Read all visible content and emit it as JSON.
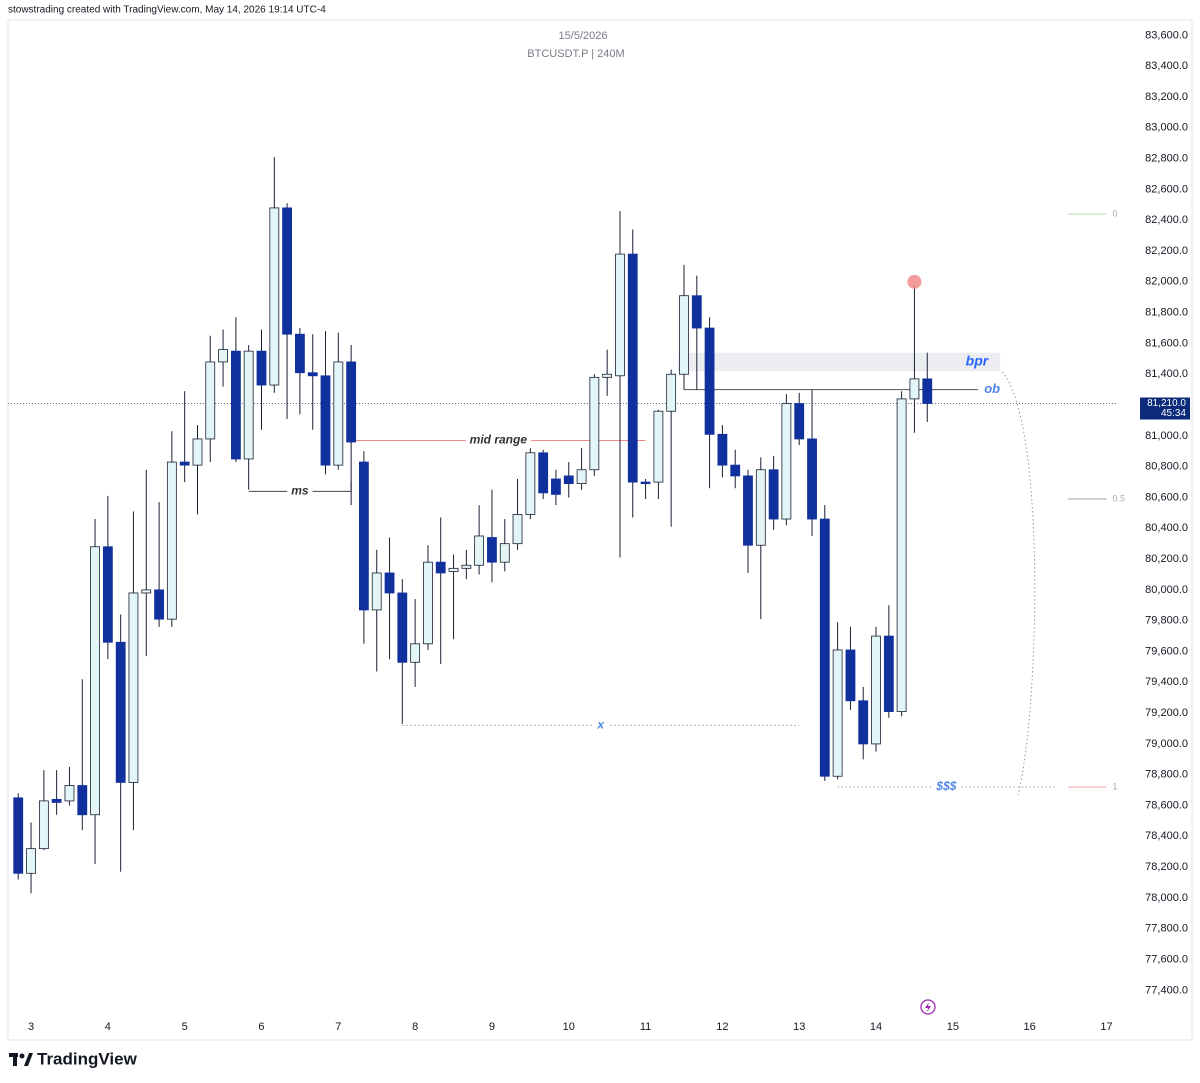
{
  "header": "stowstrading created with TradingView.com, May 14, 2026 19:14 UTC-4",
  "logo": "TradingView",
  "chart_data": {
    "type": "candlestick",
    "date": "15/5/2026",
    "symbol": "BTCUSDT.P | 240M",
    "x": [
      2.833,
      3,
      3.167,
      3.333,
      3.5,
      3.667,
      3.833,
      4,
      4.167,
      4.333,
      4.5,
      4.667,
      4.833,
      5,
      5.167,
      5.333,
      5.5,
      5.667,
      5.833,
      6,
      6.167,
      6.333,
      6.5,
      6.667,
      6.833,
      7,
      7.167,
      7.333,
      7.5,
      7.667,
      7.833,
      8,
      8.167,
      8.333,
      8.5,
      8.667,
      8.833,
      9,
      9.167,
      9.333,
      9.5,
      9.667,
      9.833,
      10,
      10.167,
      10.333,
      10.5,
      10.667,
      10.833,
      11,
      11.167,
      11.333,
      11.5,
      11.667,
      11.833,
      12,
      12.167,
      12.333,
      12.5,
      12.667,
      12.833,
      13,
      13.167,
      13.333,
      13.5,
      13.667,
      13.833,
      14,
      14.167,
      14.333,
      14.5,
      14.667
    ],
    "open": [
      78650,
      78160,
      78320,
      78640,
      78630,
      78730,
      78540,
      80280,
      79660,
      78750,
      79980,
      80000,
      79810,
      80830,
      80810,
      80980,
      81480,
      81550,
      80850,
      81550,
      81330,
      82480,
      81660,
      81410,
      81390,
      80810,
      81480,
      80830,
      79870,
      80110,
      79980,
      79530,
      79650,
      80180,
      80120,
      80140,
      80160,
      80340,
      80180,
      80300,
      80490,
      80890,
      80720,
      80740,
      80690,
      80780,
      81380,
      81390,
      82180,
      80700,
      80700,
      81160,
      81400,
      81910,
      81700,
      81010,
      80810,
      80740,
      80290,
      80780,
      80460,
      81210,
      80980,
      80460,
      78790,
      79610,
      79280,
      79000,
      79700,
      79210,
      81240,
      81370
    ],
    "high": [
      78680,
      78490,
      78830,
      78830,
      78850,
      79420,
      80460,
      80610,
      79840,
      80510,
      80780,
      80570,
      81030,
      81290,
      81070,
      81650,
      81690,
      81770,
      81590,
      81690,
      82810,
      82510,
      81700,
      81660,
      81680,
      81670,
      81590,
      80900,
      80260,
      80340,
      80070,
      79940,
      80290,
      80470,
      80230,
      80260,
      80550,
      80650,
      80460,
      80720,
      80920,
      80910,
      80780,
      80830,
      80920,
      81400,
      81560,
      82460,
      82340,
      80720,
      81170,
      81430,
      82110,
      82040,
      81770,
      81070,
      80910,
      80780,
      80860,
      80870,
      81270,
      81280,
      81300,
      80550,
      79790,
      79760,
      79370,
      79760,
      79900,
      81290,
      81980,
      81540
    ],
    "low": [
      78120,
      78030,
      78310,
      78540,
      78600,
      78440,
      78220,
      79550,
      78170,
      78440,
      79570,
      79760,
      79760,
      80700,
      80490,
      80830,
      81320,
      80830,
      80650,
      81040,
      81280,
      81110,
      81140,
      81040,
      80750,
      80780,
      80550,
      79650,
      79470,
      79550,
      79130,
      79370,
      79610,
      79520,
      79680,
      80070,
      80100,
      80050,
      80120,
      80260,
      80460,
      80590,
      80550,
      80600,
      80650,
      80740,
      81260,
      80210,
      80470,
      80590,
      80590,
      80410,
      81300,
      81300,
      80660,
      80730,
      80660,
      80110,
      79810,
      80390,
      80420,
      80940,
      80350,
      78760,
      78770,
      79220,
      78900,
      78950,
      79170,
      79180,
      81020,
      81090
    ],
    "close": [
      78160,
      78320,
      78630,
      78620,
      78730,
      78540,
      80280,
      79660,
      78750,
      79980,
      80000,
      79810,
      80830,
      80810,
      80980,
      81480,
      81560,
      80850,
      81550,
      81330,
      82480,
      81660,
      81410,
      81390,
      80810,
      81480,
      80960,
      79870,
      80110,
      79980,
      79530,
      79650,
      80180,
      80110,
      80140,
      80160,
      80350,
      80180,
      80300,
      80490,
      80890,
      80630,
      80620,
      80690,
      80780,
      81380,
      81400,
      82180,
      80700,
      80690,
      81160,
      81400,
      81910,
      81700,
      81010,
      80810,
      80740,
      80290,
      80780,
      80460,
      81210,
      80980,
      80460,
      78790,
      79610,
      79280,
      79000,
      79700,
      79210,
      81240,
      81370,
      81210
    ],
    "up_color": "#e3f6f7",
    "down_color": "#10309e",
    "outline_color": "#1b1f33",
    "xlim": [
      2.7,
      17.15
    ],
    "xticks": [
      3,
      4,
      5,
      6,
      7,
      8,
      9,
      10,
      11,
      12,
      13,
      14,
      15,
      16,
      17
    ],
    "ylim": [
      77240,
      83700
    ],
    "yticks": [
      {
        "value": 77400,
        "label": "77,400.0"
      },
      {
        "value": 77600,
        "label": "77,600.0"
      },
      {
        "value": 77800,
        "label": "77,800.0"
      },
      {
        "value": 78000,
        "label": "78,000.0"
      },
      {
        "value": 78200,
        "label": "78,200.0"
      },
      {
        "value": 78400,
        "label": "78,400.0"
      },
      {
        "value": 78600,
        "label": "78,600.0"
      },
      {
        "value": 78800,
        "label": "78,800.0"
      },
      {
        "value": 79000,
        "label": "79,000.0"
      },
      {
        "value": 79200,
        "label": "79,200.0"
      },
      {
        "value": 79400,
        "label": "79,400.0"
      },
      {
        "value": 79600,
        "label": "79,600.0"
      },
      {
        "value": 79800,
        "label": "79,800.0"
      },
      {
        "value": 80000,
        "label": "80,000.0"
      },
      {
        "value": 80200,
        "label": "80,200.0"
      },
      {
        "value": 80400,
        "label": "80,400.0"
      },
      {
        "value": 80600,
        "label": "80,600.0"
      },
      {
        "value": 80800,
        "label": "80,800.0"
      },
      {
        "value": 81000,
        "label": "81,000.0"
      },
      {
        "value": 81200,
        "label": "81,200.0"
      },
      {
        "value": 81400,
        "label": "81,400.0"
      },
      {
        "value": 81600,
        "label": "81,600.0"
      },
      {
        "value": 81800,
        "label": "81,800.0"
      },
      {
        "value": 82000,
        "label": "82,000.0"
      },
      {
        "value": 82200,
        "label": "82,200.0"
      },
      {
        "value": 82400,
        "label": "82,400.0"
      },
      {
        "value": 82600,
        "label": "82,600.0"
      },
      {
        "value": 82800,
        "label": "82,800.0"
      },
      {
        "value": 83000,
        "label": "83,000.0"
      },
      {
        "value": 83200,
        "label": "83,200.0"
      },
      {
        "value": 83400,
        "label": "83,400.0"
      },
      {
        "value": 83600,
        "label": "83,600.0"
      }
    ],
    "grid": false,
    "last_price": {
      "value": 81210,
      "label": "81,210.0",
      "countdown": "45:34",
      "color": "#0c2a7a"
    },
    "annotations": [
      {
        "type": "line",
        "text": "mid range",
        "price": 80970,
        "x": [
          7.167,
          11.0
        ],
        "color": "#f08a8a",
        "text_color": "#333333",
        "style": "solid"
      },
      {
        "type": "line",
        "text": "ms",
        "price": 80640,
        "x": [
          5.833,
          7.167
        ],
        "color": "#444444",
        "text_color": "#333333",
        "style": "solid"
      },
      {
        "type": "line",
        "text": "x",
        "price": 79120,
        "x": [
          7.833,
          13.0
        ],
        "color": "#9a9a9a",
        "text_color": "#4f86e8",
        "style": "dotted"
      },
      {
        "type": "line",
        "text": "$$$",
        "price": 78720,
        "x": [
          13.5,
          16.333
        ],
        "color": "#9a9a9a",
        "text_color": "#4f86e8",
        "style": "dotted"
      },
      {
        "type": "zone",
        "text": "bpr",
        "prices": [
          81540,
          81420
        ],
        "x": [
          11.417,
          15.617
        ],
        "color": "#e6e8ee",
        "text_color": "#2962ff"
      },
      {
        "type": "ray",
        "text": "ob",
        "price": 81300,
        "x": [
          11.5,
          15.33
        ],
        "color": "#555555",
        "text_color": "#4f86e8",
        "style": "solid"
      }
    ],
    "fib": [
      {
        "level": 0,
        "price": 82440,
        "color": "#b5dcb7"
      },
      {
        "level": 0.5,
        "price": 80590,
        "color": "#a0a0a0"
      },
      {
        "level": 1,
        "price": 78720,
        "color": "#f2a5a5"
      }
    ],
    "fib_x": [
      16.5,
      17.0
    ],
    "marker": {
      "x": 14.5,
      "price": 82000,
      "color": "#f28b8b"
    }
  }
}
